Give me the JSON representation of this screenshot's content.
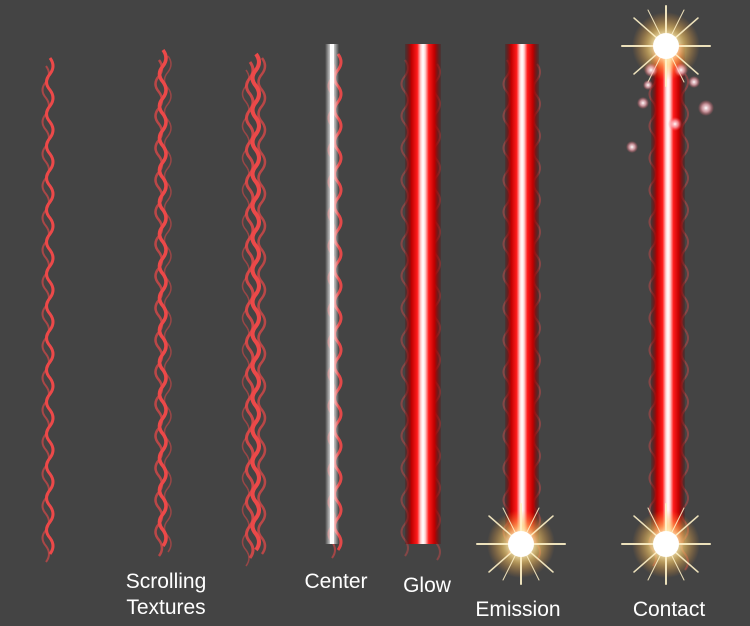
{
  "captions": {
    "scrolling_line1": "Scrolling",
    "scrolling_line2": "Textures",
    "center": "Center",
    "glow": "Glow",
    "emission": "Emission",
    "contact": "Contact"
  },
  "colors": {
    "background": "#444444",
    "beam_red": "#e80000",
    "beam_core": "#ffffff",
    "texture_red": "#ff4a4a",
    "flare": "#ffe7a8"
  }
}
